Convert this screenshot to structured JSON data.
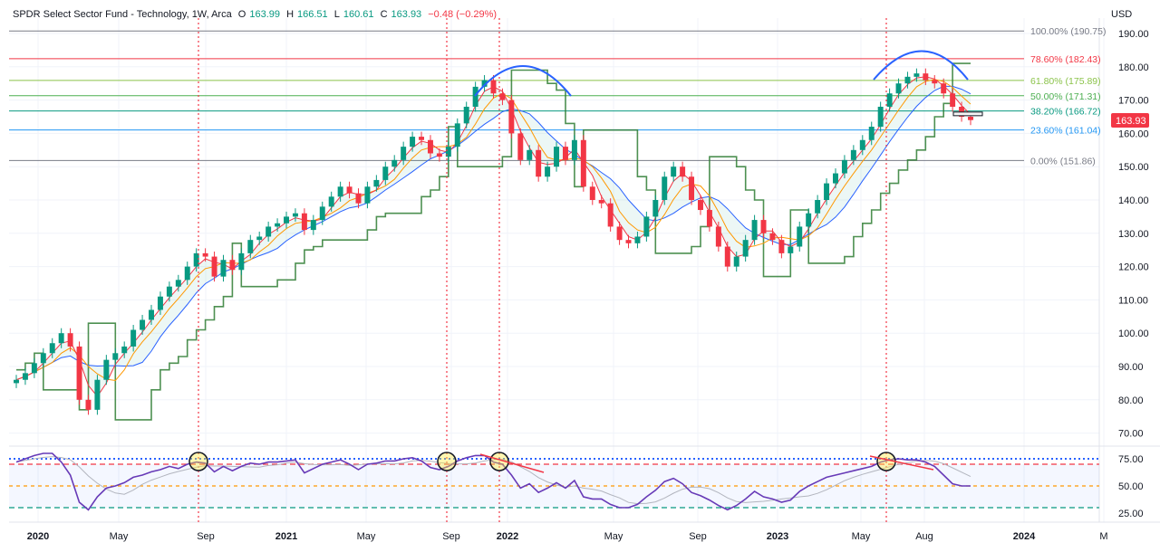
{
  "header": {
    "symbol": "SPDR Select Sector Fund - Technology, 1W, Arca",
    "open_label": "O",
    "open": "163.99",
    "high_label": "H",
    "high": "166.51",
    "low_label": "L",
    "low": "160.61",
    "close_label": "C",
    "close": "163.93",
    "change": "−0.48 (−0.29%)",
    "currency": "USD"
  },
  "last_price": "163.93",
  "colors": {
    "up": "#089981",
    "down": "#f23645",
    "ma_red": "#f23645",
    "ma_orange": "#ff9800",
    "ma_blue": "#2962ff",
    "rsi": "#673ab7",
    "annotation": "#2962ff"
  },
  "chart_data": [
    {
      "type": "line",
      "title": "SPDR Select Sector Fund - Technology, 1W, Arca",
      "ylim": [
        68,
        193
      ],
      "y_ticks": [
        "190.00",
        "180.00",
        "170.00",
        "160.00",
        "150.00",
        "140.00",
        "130.00",
        "120.00",
        "110.00",
        "100.00",
        "90.00",
        "80.00",
        "70.00"
      ],
      "x_ticks": [
        "2020",
        "May",
        "Sep",
        "2021",
        "May",
        "Sep",
        "2022",
        "May",
        "Sep",
        "2023",
        "May",
        "Aug",
        "2024",
        "M"
      ],
      "fib_levels": [
        {
          "label": "100.00% (190.75)",
          "value": 190.75,
          "color": "#787b86"
        },
        {
          "label": "78.60% (182.43)",
          "value": 182.43,
          "color": "#f23645"
        },
        {
          "label": "61.80% (175.89)",
          "value": 175.89,
          "color": "#8bc34a"
        },
        {
          "label": "50.00% (171.31)",
          "value": 171.31,
          "color": "#4caf50"
        },
        {
          "label": "38.20% (166.72)",
          "value": 166.72,
          "color": "#089981"
        },
        {
          "label": "23.60% (161.04)",
          "value": 161.04,
          "color": "#2196f3"
        },
        {
          "label": "0.00% (151.86)",
          "value": 151.86,
          "color": "#787b86"
        }
      ],
      "series": [
        {
          "name": "",
          "values": [
            86,
            88,
            91,
            94,
            97,
            100,
            96,
            80,
            77,
            86,
            92,
            94,
            96,
            101,
            104,
            107,
            111,
            114,
            116,
            120,
            124,
            123,
            117,
            122,
            119,
            124,
            128,
            129,
            132,
            133,
            135,
            136,
            131,
            134,
            138,
            141,
            144,
            142,
            139,
            144,
            146,
            150,
            152,
            156,
            159,
            158,
            154,
            153,
            156,
            163,
            168,
            174,
            176,
            172,
            170,
            160,
            152,
            155,
            147,
            150,
            156,
            152,
            158,
            144,
            140,
            139,
            132,
            128,
            127,
            129,
            135,
            140,
            147,
            150,
            147,
            140,
            137,
            132,
            126,
            120,
            123,
            128,
            134,
            130,
            128,
            124,
            126,
            132,
            136,
            140,
            145,
            148,
            152,
            155,
            158,
            162,
            168,
            172,
            175,
            177,
            178,
            176,
            175,
            172,
            168,
            165,
            164
          ]
        }
      ]
    },
    {
      "type": "line",
      "title": "",
      "ylim": [
        25,
        85
      ],
      "y_ticks": [
        "75.00",
        "50.00",
        "25.00"
      ],
      "hlines": [
        75,
        70,
        50,
        30
      ],
      "series": [
        {
          "name": "",
          "values": [
            72,
            75,
            78,
            80,
            80,
            72,
            60,
            35,
            28,
            40,
            48,
            50,
            53,
            58,
            60,
            63,
            65,
            68,
            66,
            70,
            72,
            71,
            63,
            68,
            64,
            68,
            71,
            70,
            72,
            72,
            73,
            74,
            62,
            66,
            70,
            72,
            74,
            70,
            65,
            70,
            71,
            73,
            73,
            75,
            76,
            73,
            67,
            65,
            68,
            73,
            76,
            78,
            78,
            72,
            70,
            60,
            48,
            52,
            44,
            48,
            53,
            48,
            55,
            40,
            38,
            38,
            33,
            30,
            30,
            33,
            40,
            46,
            54,
            57,
            52,
            44,
            41,
            37,
            32,
            28,
            32,
            38,
            45,
            40,
            38,
            35,
            37,
            45,
            50,
            54,
            58,
            60,
            62,
            64,
            66,
            68,
            72,
            74,
            75,
            74,
            74,
            72,
            68,
            60,
            52,
            50,
            50
          ]
        }
      ]
    }
  ]
}
